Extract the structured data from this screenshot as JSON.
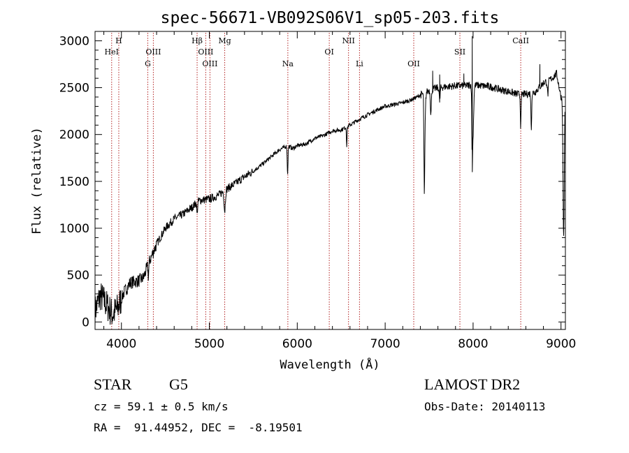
{
  "chart_data": {
    "type": "line",
    "title": "spec-56671-VB092S06V1_sp05-203.fits",
    "xlabel": "Wavelength (Å)",
    "ylabel": "Flux (relative)",
    "xlim": [
      3700,
      9050
    ],
    "ylim": [
      -80,
      3100
    ],
    "xticks": [
      4000,
      5000,
      6000,
      7000,
      8000,
      9000
    ],
    "yticks": [
      0,
      500,
      1000,
      1500,
      2000,
      2500,
      3000
    ],
    "grid": false,
    "line_color": "#000000",
    "marker_color": "#b22222",
    "spectrum_anchors": [
      [
        3700,
        120
      ],
      [
        3760,
        280
      ],
      [
        3820,
        200
      ],
      [
        3900,
        80
      ],
      [
        3960,
        150
      ],
      [
        4020,
        300
      ],
      [
        4100,
        420
      ],
      [
        4200,
        440
      ],
      [
        4250,
        470
      ],
      [
        4300,
        600
      ],
      [
        4350,
        720
      ],
      [
        4400,
        830
      ],
      [
        4500,
        1000
      ],
      [
        4600,
        1100
      ],
      [
        4700,
        1150
      ],
      [
        4800,
        1220
      ],
      [
        4860,
        1280
      ],
      [
        4900,
        1300
      ],
      [
        5000,
        1310
      ],
      [
        5100,
        1350
      ],
      [
        5200,
        1420
      ],
      [
        5300,
        1480
      ],
      [
        5400,
        1550
      ],
      [
        5500,
        1610
      ],
      [
        5600,
        1680
      ],
      [
        5700,
        1760
      ],
      [
        5800,
        1840
      ],
      [
        5890,
        1880
      ],
      [
        5950,
        1850
      ],
      [
        6000,
        1880
      ],
      [
        6100,
        1900
      ],
      [
        6200,
        1960
      ],
      [
        6300,
        1990
      ],
      [
        6400,
        2040
      ],
      [
        6500,
        2050
      ],
      [
        6600,
        2100
      ],
      [
        6700,
        2160
      ],
      [
        6800,
        2210
      ],
      [
        6900,
        2260
      ],
      [
        7000,
        2300
      ],
      [
        7100,
        2320
      ],
      [
        7200,
        2340
      ],
      [
        7300,
        2370
      ],
      [
        7400,
        2420
      ],
      [
        7500,
        2470
      ],
      [
        7600,
        2500
      ],
      [
        7700,
        2510
      ],
      [
        7800,
        2520
      ],
      [
        7900,
        2520
      ],
      [
        8000,
        2530
      ],
      [
        8100,
        2520
      ],
      [
        8200,
        2510
      ],
      [
        8300,
        2480
      ],
      [
        8400,
        2460
      ],
      [
        8500,
        2430
      ],
      [
        8600,
        2430
      ],
      [
        8700,
        2450
      ],
      [
        8800,
        2550
      ],
      [
        8900,
        2600
      ],
      [
        8950,
        2650
      ],
      [
        9000,
        2400
      ]
    ],
    "absorption_features": [
      [
        4307,
        130,
        6
      ],
      [
        4861,
        140,
        6
      ],
      [
        5175,
        220,
        10
      ],
      [
        5890,
        300,
        6
      ],
      [
        6563,
        200,
        5
      ],
      [
        7445,
        800,
        6
      ],
      [
        7450,
        400,
        10
      ],
      [
        7520,
        250,
        8
      ],
      [
        7620,
        150,
        8
      ],
      [
        7990,
        700,
        6
      ],
      [
        8000,
        500,
        10
      ],
      [
        8542,
        350,
        6
      ],
      [
        8662,
        380,
        6
      ],
      [
        8850,
        150,
        8
      ],
      [
        9030,
        1500,
        10
      ]
    ],
    "emission_spikes": [
      [
        7990,
        3050
      ],
      [
        7895,
        2650
      ],
      [
        8760,
        2750
      ],
      [
        7540,
        2680
      ],
      [
        7620,
        2640
      ]
    ],
    "line_markers": [
      {
        "wavelength": 3889,
        "label": "HeI",
        "row": 2
      },
      {
        "wavelength": 3970,
        "label": "H",
        "row": 1
      },
      {
        "wavelength": 4300,
        "label": "G",
        "row": 3
      },
      {
        "wavelength": 4363,
        "label": "OIII",
        "row": 2
      },
      {
        "wavelength": 4861,
        "label": "Hβ",
        "row": 1
      },
      {
        "wavelength": 4959,
        "label": "OIII",
        "row": 2
      },
      {
        "wavelength": 5007,
        "label": "OIII",
        "row": 3
      },
      {
        "wavelength": 5175,
        "label": "Mg",
        "row": 1
      },
      {
        "wavelength": 5893,
        "label": "Na",
        "row": 3
      },
      {
        "wavelength": 6364,
        "label": "OI",
        "row": 2
      },
      {
        "wavelength": 6583,
        "label": "NII",
        "row": 1
      },
      {
        "wavelength": 6708,
        "label": "Li",
        "row": 3
      },
      {
        "wavelength": 7325,
        "label": "OII",
        "row": 3
      },
      {
        "wavelength": 7850,
        "label": "SII",
        "row": 2
      },
      {
        "wavelength": 8542,
        "label": "CaII",
        "row": 1
      }
    ]
  },
  "info": {
    "object_class": "STAR",
    "subclass": "G5",
    "redshift_line": "cz = 59.1 ± 0.5 km/s",
    "coords_line": "RA =  91.44952, DEC =  -8.19501",
    "survey": "LAMOST DR2",
    "obs_date_line": "Obs-Date: 20140113"
  }
}
